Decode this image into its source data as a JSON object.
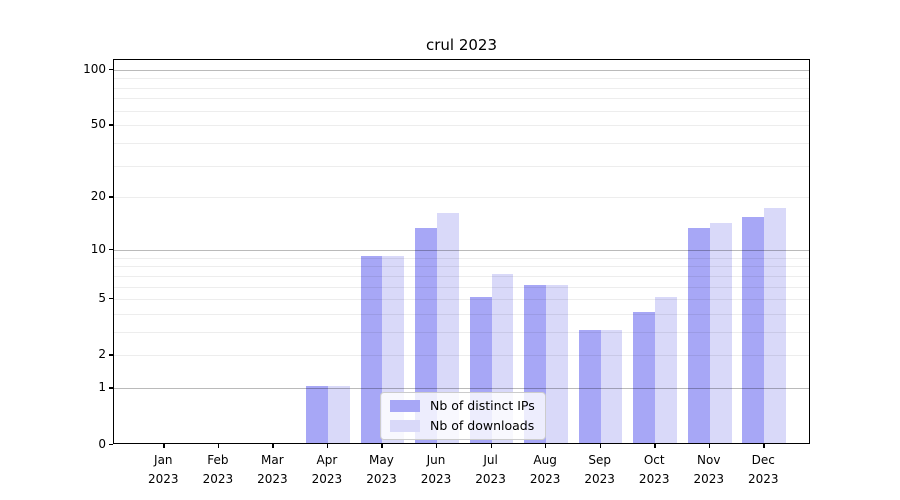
{
  "title": "crul 2023",
  "chart_data": {
    "type": "bar",
    "title": "crul 2023",
    "categories": [
      "Jan",
      "Feb",
      "Mar",
      "Apr",
      "May",
      "Jun",
      "Jul",
      "Aug",
      "Sep",
      "Oct",
      "Nov",
      "Dec"
    ],
    "xtick_year": "2023",
    "series": [
      {
        "name": "Nb of distinct IPs",
        "color": "#a7a7f6",
        "values": [
          0,
          0,
          0,
          1,
          9,
          13,
          5,
          6,
          3,
          4,
          13,
          15
        ]
      },
      {
        "name": "Nb of downloads",
        "color": "#d9d9f9",
        "values": [
          0,
          0,
          0,
          1,
          9,
          16,
          7,
          6,
          3,
          5,
          14,
          17
        ]
      }
    ],
    "yscale": "log1p",
    "ylim": [
      0,
      113
    ],
    "yticks_labeled": [
      0,
      1,
      2,
      5,
      10,
      20,
      50,
      100
    ],
    "ygrid_major": [
      1,
      10,
      100
    ],
    "ygrid_minor": [
      2,
      3,
      4,
      5,
      6,
      7,
      8,
      9,
      20,
      30,
      40,
      50,
      60,
      70,
      80,
      90
    ],
    "grid": true,
    "legend_position": "lower center",
    "legend_entries": [
      "Nb of distinct IPs",
      "Nb of downloads"
    ]
  },
  "colors": {
    "bar_dark": "#a7a7f6",
    "bar_light": "#d9d9f9",
    "grid_major": "#bababa",
    "grid_minor": "#ededed",
    "spine": "#000000",
    "background": "#ffffff"
  }
}
